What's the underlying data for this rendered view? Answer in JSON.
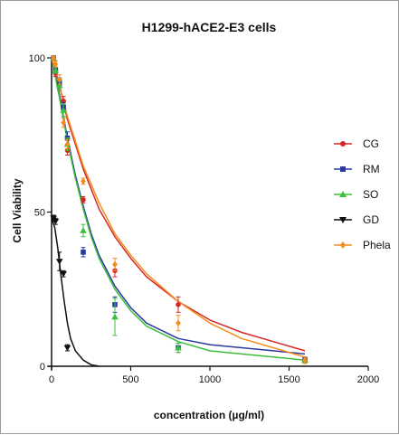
{
  "chart_data": {
    "type": "scatter",
    "title": "H1299-hACE2-E3 cells",
    "xlabel": "concentration (µg/ml)",
    "ylabel": "Cell Viability",
    "xlim": [
      0,
      2000
    ],
    "ylim": [
      0,
      100
    ],
    "xticks": [
      0,
      500,
      1000,
      1500,
      2000
    ],
    "yticks": [
      0,
      50,
      100
    ],
    "grid": false,
    "legend_position": "right",
    "series": [
      {
        "name": "CG",
        "color": "#d62728",
        "marker": "circle",
        "points": [
          {
            "x": 12.5,
            "y": 100,
            "err": 0.5
          },
          {
            "x": 25,
            "y": 95,
            "err": 1
          },
          {
            "x": 50,
            "y": 91,
            "err": 1.5
          },
          {
            "x": 75,
            "y": 86,
            "err": 1.5
          },
          {
            "x": 100,
            "y": 70,
            "err": 1.5
          },
          {
            "x": 200,
            "y": 54,
            "err": 1
          },
          {
            "x": 400,
            "y": 31,
            "err": 2
          },
          {
            "x": 800,
            "y": 20,
            "err": 2.5
          },
          {
            "x": 1600,
            "y": 2,
            "err": 1
          }
        ],
        "curve": [
          [
            0,
            100
          ],
          [
            50,
            91
          ],
          [
            100,
            80
          ],
          [
            150,
            72
          ],
          [
            200,
            64
          ],
          [
            300,
            51
          ],
          [
            400,
            42
          ],
          [
            500,
            35
          ],
          [
            600,
            29
          ],
          [
            800,
            21
          ],
          [
            1000,
            15
          ],
          [
            1200,
            11
          ],
          [
            1400,
            8
          ],
          [
            1600,
            5
          ]
        ]
      },
      {
        "name": "RM",
        "color": "#2b3aa0",
        "marker": "square",
        "points": [
          {
            "x": 12.5,
            "y": 100,
            "err": 0.5
          },
          {
            "x": 25,
            "y": 96,
            "err": 1
          },
          {
            "x": 50,
            "y": 92,
            "err": 1.5
          },
          {
            "x": 75,
            "y": 84,
            "err": 1.5
          },
          {
            "x": 100,
            "y": 74,
            "err": 2
          },
          {
            "x": 200,
            "y": 37,
            "err": 1.5
          },
          {
            "x": 400,
            "y": 20,
            "err": 2.5
          },
          {
            "x": 800,
            "y": 6,
            "err": 1.5
          },
          {
            "x": 1600,
            "y": 2,
            "err": 1
          }
        ],
        "curve": [
          [
            0,
            100
          ],
          [
            50,
            88
          ],
          [
            100,
            74
          ],
          [
            150,
            62
          ],
          [
            200,
            52
          ],
          [
            250,
            43
          ],
          [
            300,
            36
          ],
          [
            400,
            26
          ],
          [
            500,
            19
          ],
          [
            600,
            14
          ],
          [
            800,
            9
          ],
          [
            1000,
            7
          ],
          [
            1200,
            6
          ],
          [
            1400,
            5
          ],
          [
            1600,
            4
          ]
        ]
      },
      {
        "name": "SO",
        "color": "#3cbf3c",
        "marker": "triangle",
        "points": [
          {
            "x": 12.5,
            "y": 100,
            "err": 0.5
          },
          {
            "x": 25,
            "y": 96,
            "err": 1
          },
          {
            "x": 50,
            "y": 91,
            "err": 1.5
          },
          {
            "x": 75,
            "y": 83,
            "err": 2
          },
          {
            "x": 100,
            "y": 72,
            "err": 2
          },
          {
            "x": 200,
            "y": 44,
            "err": 2
          },
          {
            "x": 400,
            "y": 16,
            "err": 6
          },
          {
            "x": 800,
            "y": 6,
            "err": 1.5
          },
          {
            "x": 1600,
            "y": 2,
            "err": 1
          }
        ],
        "curve": [
          [
            0,
            100
          ],
          [
            50,
            87
          ],
          [
            100,
            73
          ],
          [
            150,
            61
          ],
          [
            200,
            51
          ],
          [
            250,
            42
          ],
          [
            300,
            35
          ],
          [
            400,
            25
          ],
          [
            500,
            18
          ],
          [
            600,
            13
          ],
          [
            800,
            8
          ],
          [
            1000,
            5
          ],
          [
            1200,
            4
          ],
          [
            1400,
            3
          ],
          [
            1600,
            2
          ]
        ]
      },
      {
        "name": "GD",
        "color": "#111111",
        "marker": "triangle-down",
        "points": [
          {
            "x": 12.5,
            "y": 48,
            "err": 1
          },
          {
            "x": 25,
            "y": 47,
            "err": 1
          },
          {
            "x": 50,
            "y": 34,
            "err": 3
          },
          {
            "x": 75,
            "y": 30,
            "err": 1
          },
          {
            "x": 100,
            "y": 6,
            "err": 1
          }
        ],
        "curve": [
          [
            0,
            48
          ],
          [
            20,
            45
          ],
          [
            40,
            38
          ],
          [
            60,
            29
          ],
          [
            80,
            21
          ],
          [
            100,
            14
          ],
          [
            120,
            9
          ],
          [
            150,
            5
          ],
          [
            200,
            2
          ],
          [
            250,
            0.5
          ],
          [
            300,
            0
          ]
        ]
      },
      {
        "name": "Phela",
        "color": "#f28c1e",
        "marker": "diamond",
        "points": [
          {
            "x": 12.5,
            "y": 100,
            "err": 0.5
          },
          {
            "x": 25,
            "y": 98,
            "err": 1
          },
          {
            "x": 50,
            "y": 93,
            "err": 1.5
          },
          {
            "x": 75,
            "y": 79,
            "err": 1.5
          },
          {
            "x": 100,
            "y": 72,
            "err": 1.5
          },
          {
            "x": 200,
            "y": 60,
            "err": 1
          },
          {
            "x": 400,
            "y": 33,
            "err": 2
          },
          {
            "x": 800,
            "y": 14,
            "err": 2.5
          },
          {
            "x": 1600,
            "y": 2,
            "err": 1
          }
        ],
        "curve": [
          [
            0,
            100
          ],
          [
            50,
            91
          ],
          [
            100,
            81
          ],
          [
            150,
            73
          ],
          [
            200,
            65
          ],
          [
            300,
            53
          ],
          [
            400,
            43
          ],
          [
            500,
            36
          ],
          [
            600,
            30
          ],
          [
            800,
            21
          ],
          [
            1000,
            14
          ],
          [
            1200,
            9
          ],
          [
            1400,
            6
          ],
          [
            1600,
            3
          ]
        ]
      }
    ]
  }
}
